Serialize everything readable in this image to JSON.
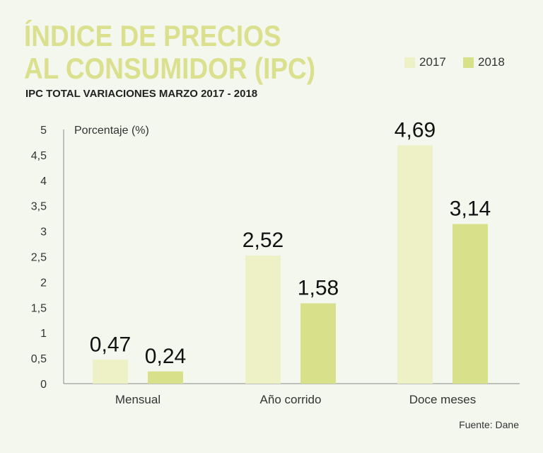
{
  "chart_data": {
    "type": "bar",
    "title": "ÍNDICE DE PRECIOS AL CONSUMIDOR (IPC)",
    "subtitle": "IPC TOTAL VARIACIONES MARZO 2017 - 2018",
    "ylabel": "Porcentaje (%)",
    "xlabel": "",
    "ylim": [
      0,
      5
    ],
    "yticks": [
      "0",
      "0,5",
      "1",
      "1,5",
      "2",
      "2,5",
      "3",
      "3,5",
      "4",
      "4,5",
      "5"
    ],
    "categories": [
      "Mensual",
      "Año corrido",
      "Doce meses"
    ],
    "series": [
      {
        "name": "2017",
        "values": [
          0.47,
          2.52,
          4.69
        ],
        "labels": [
          "0,47",
          "2,52",
          "4,69"
        ],
        "color": "#eef0c6"
      },
      {
        "name": "2018",
        "values": [
          0.24,
          1.58,
          3.14
        ],
        "labels": [
          "0,24",
          "1,58",
          "3,14"
        ],
        "color": "#d8e08a"
      }
    ],
    "grid": false,
    "legend_placement": "top-right",
    "source": "Fuente: Dane"
  },
  "colors": {
    "background": "#f3f7ee",
    "title": "#dbe08e"
  }
}
